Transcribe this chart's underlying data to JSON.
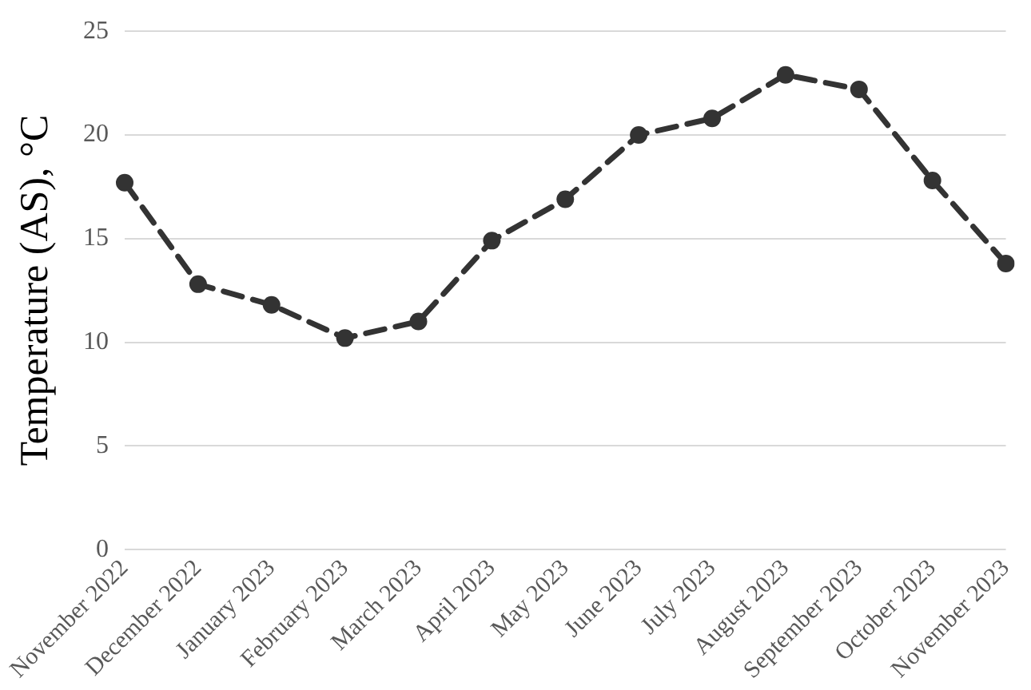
{
  "chart_data": {
    "type": "line",
    "ylabel": "Temperature (AS), °C",
    "categories": [
      "November 2022",
      "December 2022",
      "January 2023",
      "February 2023",
      "March 2023",
      "April 2023",
      "May 2023",
      "June 2023",
      "July 2023",
      "August 2023",
      "September 2023",
      "October 2023",
      "November 2023"
    ],
    "series": [
      {
        "color": "#333333",
        "values": [
          17.7,
          12.8,
          11.8,
          10.2,
          11.0,
          14.9,
          16.9,
          20.0,
          20.8,
          22.9,
          22.2,
          17.8,
          13.8
        ]
      }
    ],
    "ylim": [
      0,
      25
    ],
    "yticks": [
      0,
      5,
      10,
      15,
      20,
      25
    ],
    "grid": "y",
    "marker": "circle",
    "line_style": "dashed",
    "legend": false
  }
}
